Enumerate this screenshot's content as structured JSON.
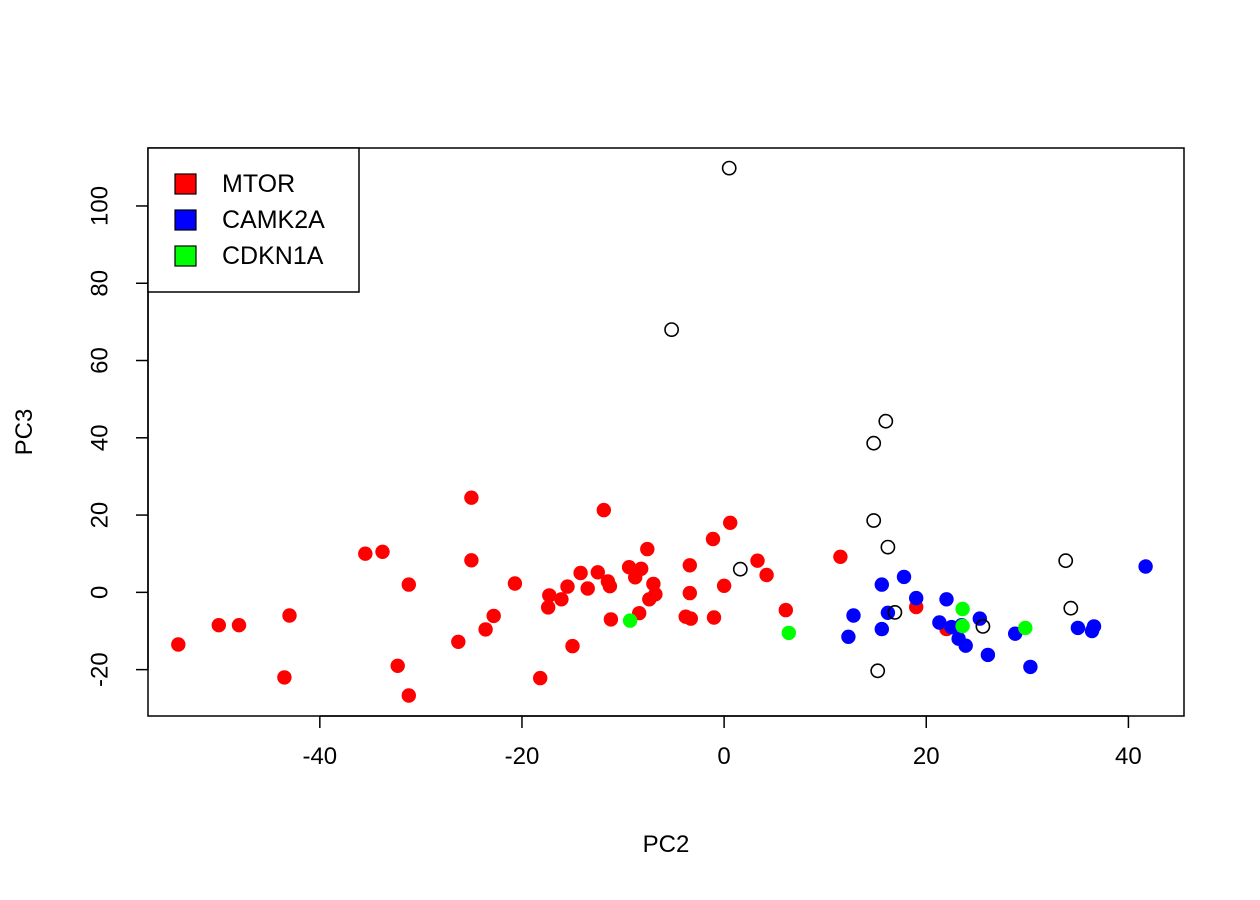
{
  "chart_data": {
    "type": "scatter",
    "title": "",
    "xlabel": "PC2",
    "ylabel": "PC3",
    "xlim": [
      -57,
      45.5
    ],
    "ylim": [
      -32,
      115
    ],
    "xticks": [
      {
        "value": -40,
        "label": "-40"
      },
      {
        "value": -20,
        "label": "-20"
      },
      {
        "value": 0,
        "label": "0"
      },
      {
        "value": 20,
        "label": "20"
      },
      {
        "value": 40,
        "label": "40"
      }
    ],
    "yticks": [
      {
        "value": -20,
        "label": "-20"
      },
      {
        "value": 0,
        "label": "0"
      },
      {
        "value": 20,
        "label": "20"
      },
      {
        "value": 40,
        "label": "40"
      },
      {
        "value": 60,
        "label": "60"
      },
      {
        "value": 80,
        "label": "80"
      },
      {
        "value": 100,
        "label": "100"
      }
    ],
    "legend_position": "top-left",
    "series": [
      {
        "name": "MTOR",
        "color": "#ff0000",
        "marker": "filled-circle",
        "points": [
          [
            -54,
            -13.5
          ],
          [
            -50,
            -8.5
          ],
          [
            -48,
            -8.5
          ],
          [
            -43.5,
            -22
          ],
          [
            -43,
            -6
          ],
          [
            -35.5,
            10
          ],
          [
            -33.8,
            10.5
          ],
          [
            -32.3,
            -19
          ],
          [
            -31.2,
            2
          ],
          [
            -31.2,
            -26.7
          ],
          [
            -26.3,
            -12.8
          ],
          [
            -25,
            24.5
          ],
          [
            -25,
            8.3
          ],
          [
            -23.6,
            -9.6
          ],
          [
            -22.8,
            -6.1
          ],
          [
            -20.7,
            2.3
          ],
          [
            -18.2,
            -22.2
          ],
          [
            -17.4,
            -3.9
          ],
          [
            -17.3,
            -0.8
          ],
          [
            -16.1,
            -1.8
          ],
          [
            -15.5,
            1.5
          ],
          [
            -15,
            -13.9
          ],
          [
            -14.2,
            5
          ],
          [
            -13.5,
            1
          ],
          [
            -12.5,
            5.2
          ],
          [
            -11.9,
            21.3
          ],
          [
            -11.5,
            2.8
          ],
          [
            -11.3,
            1.6
          ],
          [
            -11.2,
            -7
          ],
          [
            -9.4,
            6.5
          ],
          [
            -8.8,
            3.9
          ],
          [
            -8.4,
            -5.4
          ],
          [
            -8.2,
            6.1
          ],
          [
            -7.6,
            11.2
          ],
          [
            -7.4,
            -1.8
          ],
          [
            -7,
            2.2
          ],
          [
            -6.8,
            -0.5
          ],
          [
            -3.8,
            -6.3
          ],
          [
            -3.4,
            7
          ],
          [
            -3.4,
            -0.2
          ],
          [
            -3.3,
            -6.8
          ],
          [
            -1.1,
            13.8
          ],
          [
            -1,
            -6.5
          ],
          [
            0,
            1.7
          ],
          [
            0.6,
            18
          ],
          [
            3.3,
            8.2
          ],
          [
            4.2,
            4.5
          ],
          [
            6.1,
            -4.6
          ],
          [
            11.5,
            9.2
          ],
          [
            19,
            -3.8
          ],
          [
            22,
            -9.5
          ]
        ]
      },
      {
        "name": "CAMK2A",
        "color": "#0000ff",
        "marker": "filled-circle",
        "points": [
          [
            12.3,
            -11.5
          ],
          [
            12.8,
            -6
          ],
          [
            15.6,
            2
          ],
          [
            15.6,
            -9.5
          ],
          [
            16.2,
            -5.3
          ],
          [
            17.8,
            4
          ],
          [
            19,
            -1.5
          ],
          [
            21.3,
            -7.8
          ],
          [
            22,
            -1.8
          ],
          [
            22.5,
            -9
          ],
          [
            23.2,
            -12
          ],
          [
            23.5,
            -8.5
          ],
          [
            23.9,
            -13.8
          ],
          [
            25.3,
            -6.8
          ],
          [
            26.1,
            -16.2
          ],
          [
            28.8,
            -10.7
          ],
          [
            30.3,
            -19.3
          ],
          [
            35,
            -9.2
          ],
          [
            36.4,
            -10
          ],
          [
            36.6,
            -8.8
          ],
          [
            41.7,
            6.7
          ]
        ]
      },
      {
        "name": "CDKN1A",
        "color": "#00ff00",
        "marker": "filled-circle",
        "points": [
          [
            -9.3,
            -7.3
          ],
          [
            6.4,
            -10.5
          ],
          [
            23.6,
            -4.3
          ],
          [
            23.6,
            -8.7
          ],
          [
            29.8,
            -9.2
          ]
        ]
      },
      {
        "name": "",
        "color": "#000000",
        "marker": "open-circle",
        "points": [
          [
            0.5,
            109.8
          ],
          [
            -5.2,
            68
          ],
          [
            16,
            44.3
          ],
          [
            14.8,
            38.6
          ],
          [
            14.8,
            18.6
          ],
          [
            16.2,
            11.7
          ],
          [
            1.6,
            6
          ],
          [
            16.9,
            -5.2
          ],
          [
            25.6,
            -8.8
          ],
          [
            15.2,
            -20.3
          ],
          [
            33.8,
            8.2
          ],
          [
            34.3,
            -4.1
          ]
        ]
      }
    ],
    "legend": [
      {
        "label": "MTOR",
        "color": "#ff0000"
      },
      {
        "label": "CAMK2A",
        "color": "#0000ff"
      },
      {
        "label": "CDKN1A",
        "color": "#00ff00"
      }
    ]
  }
}
